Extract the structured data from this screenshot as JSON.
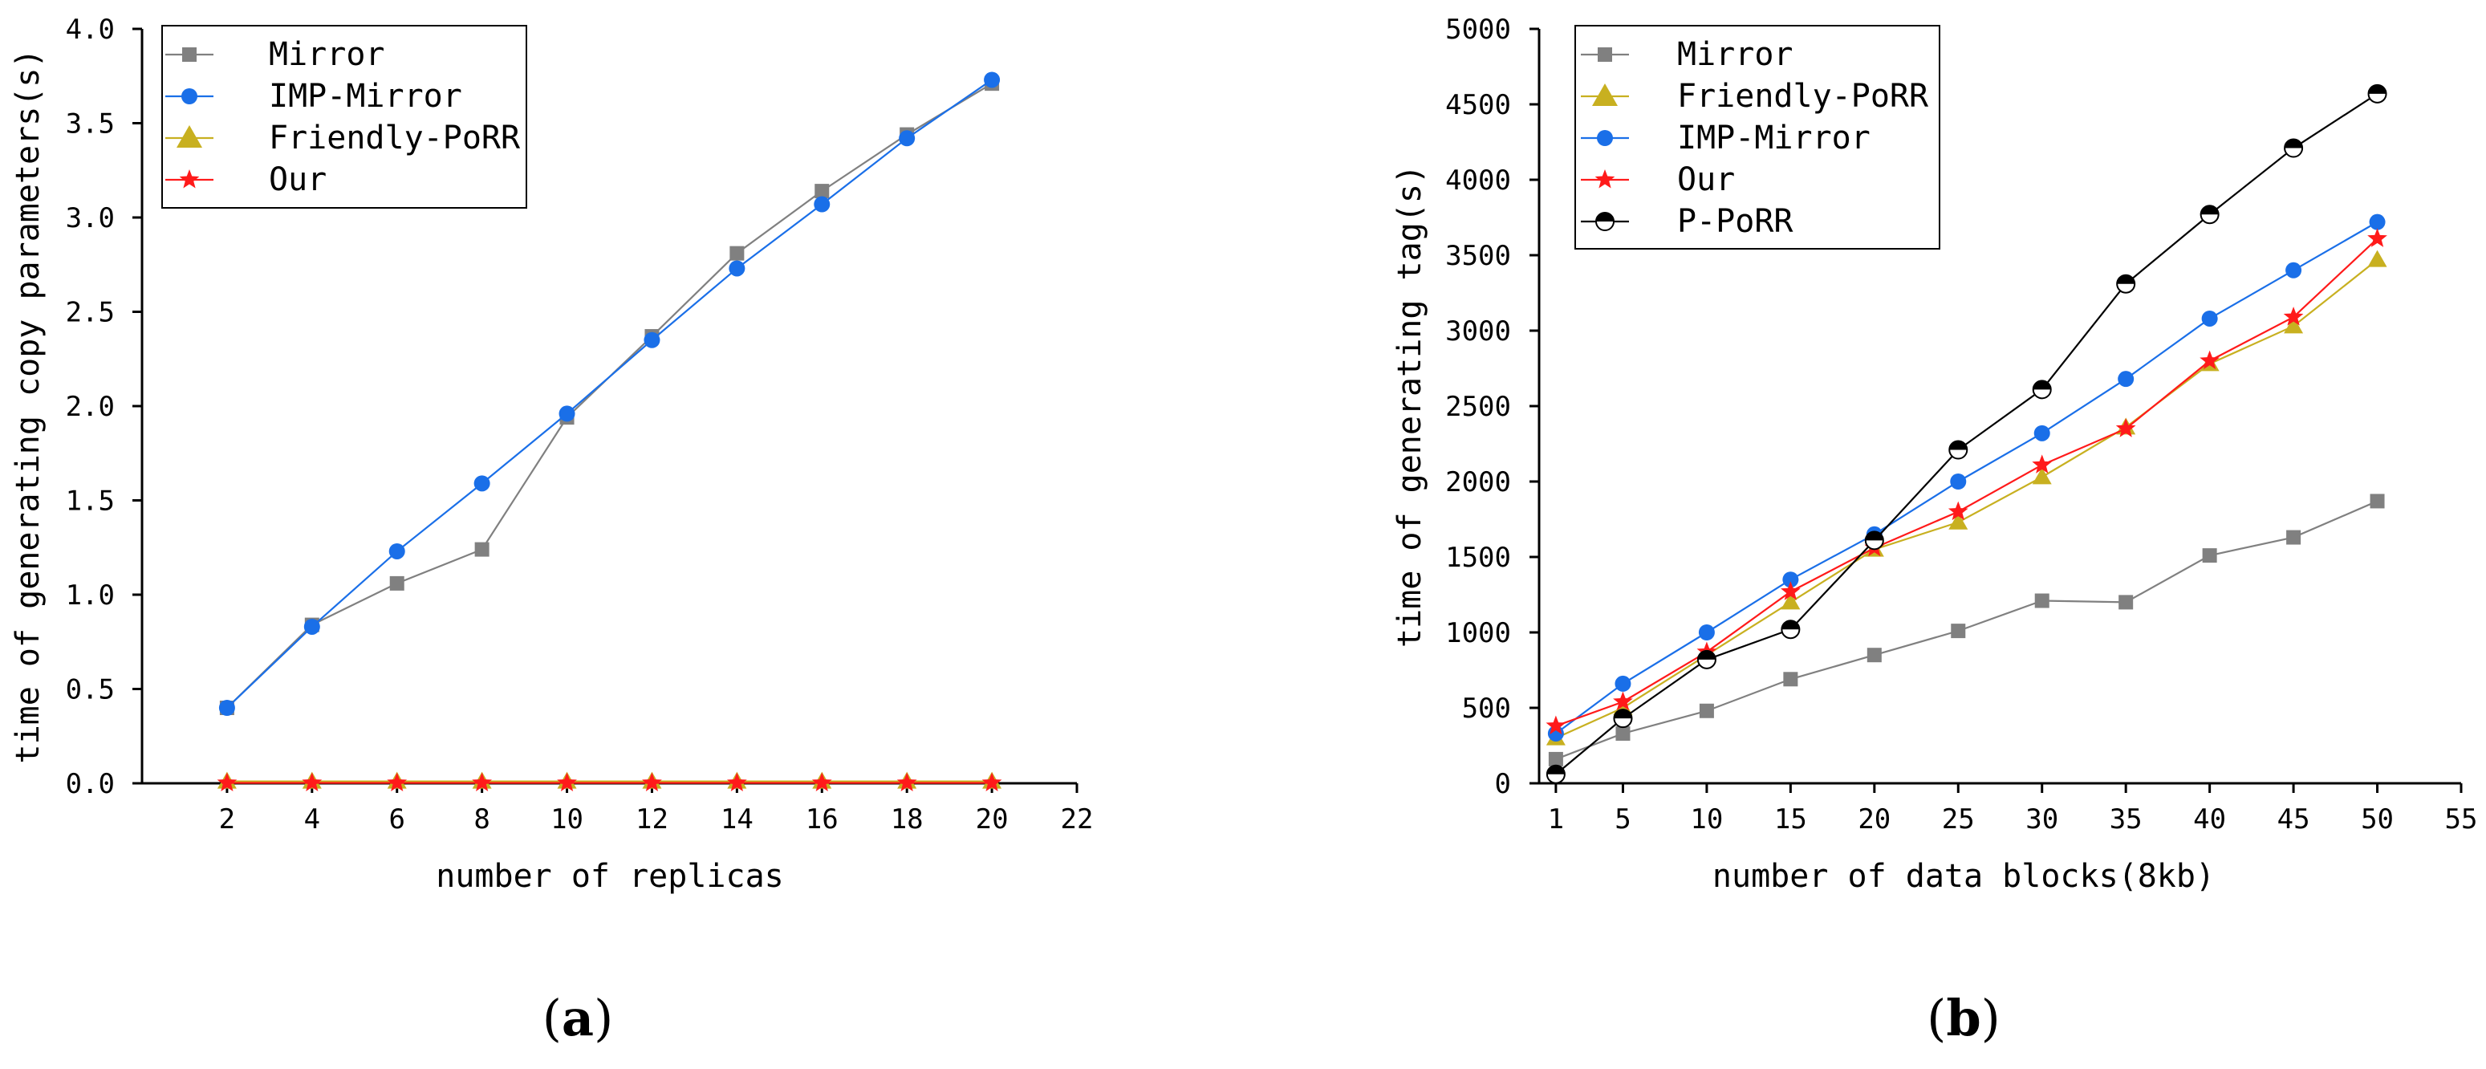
{
  "chart_data": [
    {
      "type": "line",
      "panel": "a",
      "caption_letter": "a",
      "xlabel": "number of replicas",
      "ylabel": "time of generating copy parameters(s)",
      "xlim": [
        0,
        22
      ],
      "ylim": [
        0,
        4.0
      ],
      "x_ticks": [
        2,
        4,
        6,
        8,
        10,
        12,
        14,
        16,
        18,
        20,
        22
      ],
      "x_tick_labels": [
        "2",
        "4",
        "6",
        "8",
        "10",
        "12",
        "14",
        "16",
        "18",
        "20",
        "22"
      ],
      "y_ticks": [
        0,
        0.5,
        1.0,
        1.5,
        2.0,
        2.5,
        3.0,
        3.5,
        4.0
      ],
      "y_tick_labels": [
        "0.0",
        "0.5",
        "1.0",
        "1.5",
        "2.0",
        "2.5",
        "3.0",
        "3.5",
        "4.0"
      ],
      "legend_position": "top-left",
      "series": [
        {
          "name": "Mirror",
          "color": "#808080",
          "marker": "square",
          "x": [
            2,
            4,
            6,
            8,
            10,
            12,
            14,
            16,
            18,
            20
          ],
          "values": [
            0.4,
            0.84,
            1.06,
            1.24,
            1.94,
            2.37,
            2.81,
            3.14,
            3.44,
            3.71
          ]
        },
        {
          "name": "IMP-Mirror",
          "color": "#1a6fe8",
          "marker": "circle",
          "x": [
            2,
            4,
            6,
            8,
            10,
            12,
            14,
            16,
            18,
            20
          ],
          "values": [
            0.4,
            0.83,
            1.23,
            1.59,
            1.96,
            2.35,
            2.73,
            3.07,
            3.42,
            3.73
          ]
        },
        {
          "name": "Friendly-PoRR",
          "color": "#c8b020",
          "marker": "triangle",
          "x": [
            2,
            4,
            6,
            8,
            10,
            12,
            14,
            16,
            18,
            20
          ],
          "values": [
            0.01,
            0.01,
            0.01,
            0.01,
            0.01,
            0.01,
            0.01,
            0.01,
            0.01,
            0.01
          ]
        },
        {
          "name": "Our",
          "color": "#ff1a1a",
          "marker": "star",
          "x": [
            2,
            4,
            6,
            8,
            10,
            12,
            14,
            16,
            18,
            20
          ],
          "values": [
            0.002,
            0.002,
            0.002,
            0.002,
            0.002,
            0.002,
            0.002,
            0.002,
            0.002,
            0.002
          ]
        }
      ]
    },
    {
      "type": "line",
      "panel": "b",
      "caption_letter": "b",
      "xlabel": "number of data blocks(8kb)",
      "ylabel": "time of generating tag(s)",
      "xlim": [
        0,
        55
      ],
      "ylim": [
        0,
        5000
      ],
      "x_ticks": [
        1,
        5,
        10,
        15,
        20,
        25,
        30,
        35,
        40,
        45,
        50,
        55
      ],
      "x_tick_labels": [
        "1",
        "5",
        "10",
        "15",
        "20",
        "25",
        "30",
        "35",
        "40",
        "45",
        "50",
        "55"
      ],
      "y_ticks": [
        0,
        500,
        1000,
        1500,
        2000,
        2500,
        3000,
        3500,
        4000,
        4500,
        5000
      ],
      "y_tick_labels": [
        "0",
        "500",
        "1000",
        "1500",
        "2000",
        "2500",
        "3000",
        "3500",
        "4000",
        "4500",
        "5000"
      ],
      "legend_position": "top-left",
      "series": [
        {
          "name": "Mirror",
          "color": "#808080",
          "marker": "square",
          "x": [
            1,
            5,
            10,
            15,
            20,
            25,
            30,
            35,
            40,
            45,
            50
          ],
          "values": [
            160,
            330,
            480,
            690,
            850,
            1010,
            1210,
            1200,
            1510,
            1630,
            1870
          ]
        },
        {
          "name": "Friendly-PoRR",
          "color": "#c8b020",
          "marker": "triangle",
          "x": [
            1,
            5,
            10,
            15,
            20,
            25,
            30,
            35,
            40,
            45,
            50
          ],
          "values": [
            300,
            500,
            850,
            1200,
            1550,
            1730,
            2030,
            2360,
            2780,
            3030,
            3470
          ]
        },
        {
          "name": "IMP-Mirror",
          "color": "#1a6fe8",
          "marker": "circle",
          "x": [
            1,
            5,
            10,
            15,
            20,
            25,
            30,
            35,
            40,
            45,
            50
          ],
          "values": [
            330,
            660,
            1000,
            1350,
            1650,
            2000,
            2320,
            2680,
            3080,
            3400,
            3720
          ]
        },
        {
          "name": "Our",
          "color": "#ff1a1a",
          "marker": "star",
          "x": [
            1,
            5,
            10,
            15,
            20,
            25,
            30,
            35,
            40,
            45,
            50
          ],
          "values": [
            380,
            540,
            870,
            1270,
            1560,
            1800,
            2110,
            2350,
            2800,
            3090,
            3610
          ]
        },
        {
          "name": "P-PoRR",
          "color": "#000000",
          "marker": "halfcircle",
          "x": [
            1,
            5,
            10,
            15,
            20,
            25,
            30,
            35,
            40,
            45,
            50
          ],
          "values": [
            60,
            430,
            820,
            1020,
            1610,
            2210,
            2610,
            3310,
            3770,
            4210,
            4570
          ]
        }
      ]
    }
  ]
}
